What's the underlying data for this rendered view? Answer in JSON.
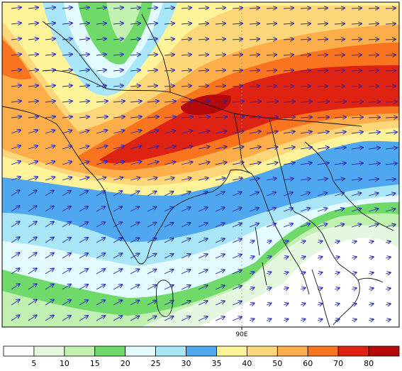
{
  "map": {
    "axis": {
      "tick_label": "90E"
    },
    "colors": {
      "coast": "#111111",
      "vector": "#2626b8",
      "meridian": "#9a9a9a"
    },
    "shading": [
      {
        "level": "0-5",
        "color": "#ffffff"
      },
      {
        "level": "5-10",
        "color": "#e6f7e0"
      },
      {
        "level": "10-15",
        "color": "#c2f0b0"
      },
      {
        "level": "15-20",
        "color": "#6fda6a"
      },
      {
        "level": "20-25",
        "color": "#e3fbff"
      },
      {
        "level": "25-30",
        "color": "#a9e6f8"
      },
      {
        "level": "30-35",
        "color": "#4fa8ef"
      },
      {
        "level": "35-40",
        "color": "#fdf49a"
      },
      {
        "level": "40-50",
        "color": "#fbd77a"
      },
      {
        "level": "50-60",
        "color": "#fcae4a"
      },
      {
        "level": "60-70",
        "color": "#f8741f"
      },
      {
        "level": "70-80",
        "color": "#df2313"
      },
      {
        "level": "80+",
        "color": "#b40a0a"
      }
    ]
  },
  "colorbar": {
    "labels": [
      "5",
      "10",
      "15",
      "20",
      "25",
      "30",
      "35",
      "40",
      "50",
      "60",
      "70",
      "80"
    ]
  }
}
